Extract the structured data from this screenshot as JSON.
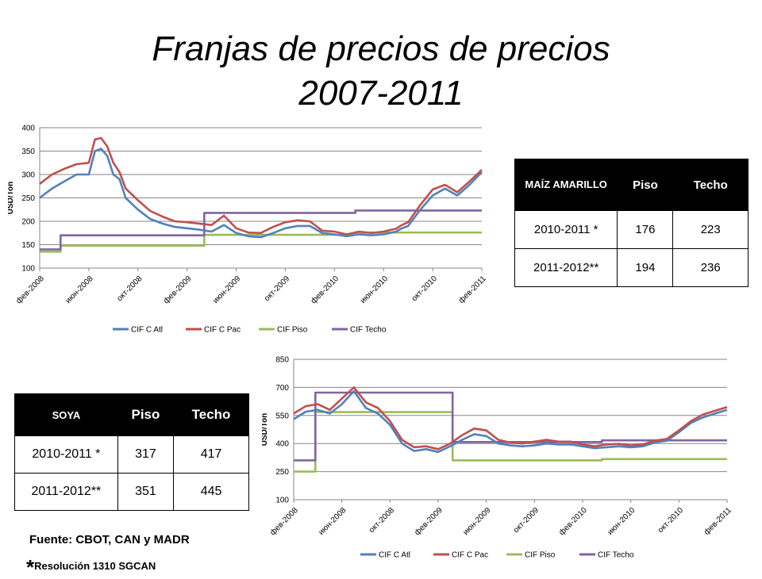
{
  "title": {
    "line1": "Franjas de precios de precios",
    "line2": "2007-2011"
  },
  "maiz_table": {
    "product": "MAÍZ AMARILLO",
    "piso_label": "Piso",
    "techo_label": "Techo",
    "rows": [
      {
        "period": "2010-2011 *",
        "piso": "176",
        "techo": "223"
      },
      {
        "period": "2011-2012**",
        "piso": "194",
        "techo": "236"
      }
    ]
  },
  "soya_table": {
    "product": "SOYA",
    "piso_label": "Piso",
    "techo_label": "Techo",
    "rows": [
      {
        "period": "2010-2011 *",
        "piso": "317",
        "techo": "417"
      },
      {
        "period": "2011-2012**",
        "piso": "351",
        "techo": "445"
      }
    ]
  },
  "source": "Fuente: CBOT, CAN y MADR",
  "note": {
    "star": "*",
    "text": "Resolución 1310 SGCAN"
  },
  "chart_data": [
    {
      "type": "line",
      "title": "",
      "ylabel": "USD/Ton",
      "ylim": [
        100,
        400
      ],
      "yticks": [
        "100",
        "150",
        "200",
        "250",
        "300",
        "350",
        "400"
      ],
      "xticks": [
        "фев-2008",
        "июн-2008",
        "окт-2008",
        "фев-2009",
        "июн-2009",
        "окт-2009",
        "фев-2010",
        "июн-2010",
        "окт-2010",
        "фев-2011"
      ],
      "xrange": [
        0,
        36
      ],
      "grid": true,
      "legend": "bottom",
      "series": [
        {
          "name": "CIF C Atl",
          "color": "#4F81BD",
          "x": [
            0,
            1,
            2,
            3,
            4,
            4.5,
            5,
            5.5,
            6,
            6.5,
            7,
            8,
            9,
            10,
            11,
            12,
            13,
            14,
            15,
            16,
            17,
            18,
            19,
            20,
            21,
            22,
            23,
            24,
            25,
            26,
            27,
            28,
            29,
            29.5,
            30,
            31,
            32,
            33,
            34,
            35,
            36
          ],
          "values": [
            250,
            270,
            285,
            300,
            300,
            350,
            355,
            340,
            300,
            290,
            250,
            225,
            205,
            195,
            188,
            185,
            182,
            178,
            192,
            175,
            168,
            166,
            175,
            185,
            190,
            190,
            175,
            172,
            168,
            172,
            170,
            172,
            178,
            185,
            190,
            225,
            255,
            270,
            255,
            278,
            305
          ]
        },
        {
          "name": "CIF C Pac",
          "color": "#C0504D",
          "x": [
            0,
            1,
            2,
            3,
            4,
            4.5,
            5,
            5.5,
            6,
            6.5,
            7,
            8,
            9,
            10,
            11,
            12,
            13,
            14,
            15,
            16,
            17,
            18,
            19,
            20,
            21,
            22,
            23,
            24,
            25,
            26,
            27,
            28,
            29,
            29.5,
            30,
            31,
            32,
            33,
            34,
            35,
            36
          ],
          "values": [
            280,
            300,
            312,
            322,
            325,
            375,
            378,
            360,
            325,
            305,
            270,
            245,
            222,
            210,
            200,
            198,
            195,
            192,
            212,
            185,
            176,
            175,
            188,
            198,
            202,
            200,
            180,
            178,
            172,
            178,
            175,
            178,
            184,
            192,
            198,
            235,
            268,
            278,
            262,
            285,
            310
          ]
        },
        {
          "name": "CIF Piso",
          "color": "#9BBB59",
          "x": [
            0,
            1.7,
            1.7,
            13.4,
            13.4,
            25.7,
            25.7,
            36
          ],
          "values": [
            135,
            135,
            148,
            148,
            171,
            171,
            176,
            176
          ]
        },
        {
          "name": "CIF Techo",
          "color": "#8064A2",
          "x": [
            0,
            1.7,
            1.7,
            13.4,
            13.4,
            25.7,
            25.7,
            36
          ],
          "values": [
            140,
            140,
            170,
            170,
            218,
            218,
            223,
            223
          ]
        }
      ]
    },
    {
      "type": "line",
      "title": "",
      "ylabel": "USD/Ton",
      "ylim": [
        100,
        850
      ],
      "yticks": [
        "100",
        "250",
        "400",
        "550",
        "700",
        "850"
      ],
      "xticks": [
        "фев-2008",
        "июн-2008",
        "окт-2008",
        "фев-2009",
        "июн-2009",
        "окт-2009",
        "фев-2010",
        "июн-2010",
        "окт-2010",
        "фев-2011"
      ],
      "xrange": [
        0,
        36
      ],
      "grid": true,
      "legend": "bottom",
      "series": [
        {
          "name": "CIF C Atl",
          "color": "#4F81BD",
          "x": [
            0,
            1,
            2,
            3,
            4,
            5,
            6,
            7,
            8,
            9,
            10,
            11,
            12,
            13,
            14,
            15,
            16,
            17,
            18,
            19,
            20,
            21,
            22,
            23,
            24,
            25,
            26,
            27,
            28,
            29,
            30,
            31,
            32,
            33,
            34,
            35,
            36
          ],
          "values": [
            530,
            570,
            580,
            560,
            610,
            680,
            590,
            560,
            500,
            400,
            360,
            370,
            355,
            385,
            420,
            450,
            440,
            400,
            390,
            385,
            390,
            400,
            395,
            395,
            385,
            375,
            380,
            385,
            380,
            385,
            405,
            415,
            460,
            510,
            540,
            560,
            580
          ]
        },
        {
          "name": "CIF C Pac",
          "color": "#C0504D",
          "x": [
            0,
            1,
            2,
            3,
            4,
            5,
            6,
            7,
            8,
            9,
            10,
            11,
            12,
            13,
            14,
            15,
            16,
            17,
            18,
            19,
            20,
            21,
            22,
            23,
            24,
            25,
            26,
            27,
            28,
            29,
            30,
            31,
            32,
            33,
            34,
            35,
            36
          ],
          "values": [
            560,
            600,
            610,
            580,
            640,
            700,
            620,
            590,
            520,
            420,
            380,
            385,
            370,
            400,
            445,
            480,
            470,
            420,
            405,
            400,
            410,
            420,
            410,
            410,
            395,
            385,
            395,
            398,
            390,
            395,
            415,
            425,
            470,
            520,
            555,
            575,
            595
          ]
        },
        {
          "name": "CIF Piso",
          "color": "#9BBB59",
          "x": [
            0,
            1.8,
            1.8,
            13.2,
            13.2,
            25.6,
            25.6,
            36
          ],
          "values": [
            250,
            250,
            568,
            568,
            310,
            310,
            317,
            317
          ]
        },
        {
          "name": "CIF Techo",
          "color": "#8064A2",
          "x": [
            0,
            1.8,
            1.8,
            13.2,
            13.2,
            25.6,
            25.6,
            36
          ],
          "values": [
            310,
            310,
            672,
            672,
            408,
            408,
            417,
            417
          ]
        }
      ]
    }
  ]
}
